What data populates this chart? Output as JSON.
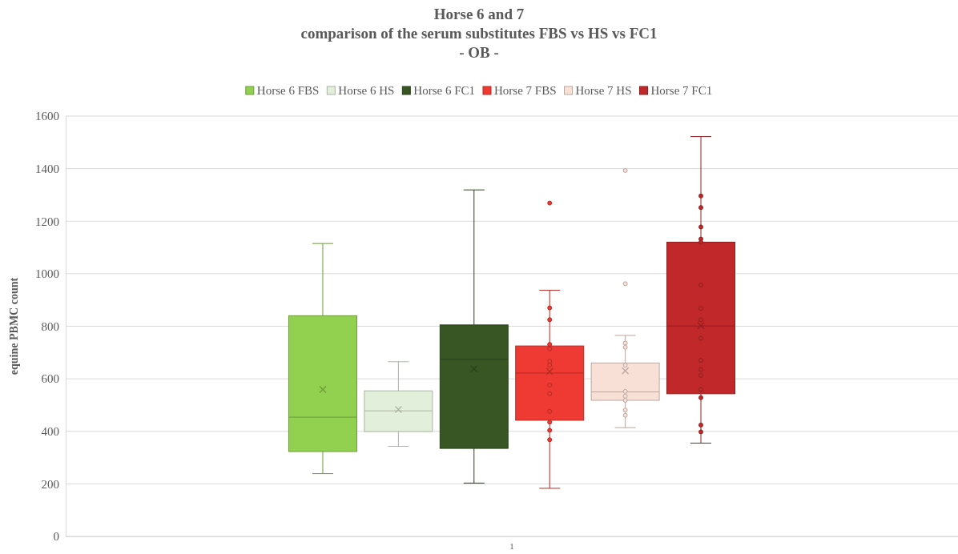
{
  "chart_data": {
    "type": "box",
    "title": "Horse 6 and 7\ncomparison of the serum substitutes FBS vs HS vs FC1\n- OB -",
    "ylabel": "equine PBMC count",
    "categories": [
      "1"
    ],
    "ylim": [
      0,
      1600
    ],
    "yticks": [
      0,
      200,
      400,
      600,
      800,
      1000,
      1200,
      1400,
      1600
    ],
    "grid": "y",
    "legend": "top",
    "series": [
      {
        "name": "Horse 6 FBS",
        "color": "#92d050",
        "boxes": [
          {
            "low": 239,
            "q1": 323,
            "median": 454,
            "q3": 840,
            "high": 1115,
            "mean": 559
          }
        ]
      },
      {
        "name": "Horse 6 HS",
        "color": "#e2efda",
        "boxes": [
          {
            "low": 343,
            "q1": 399,
            "median": 478,
            "q3": 554,
            "high": 665,
            "mean": 483
          }
        ]
      },
      {
        "name": "Horse 6 FC1",
        "color": "#375623",
        "boxes": [
          {
            "low": 203,
            "q1": 335,
            "median": 674,
            "q3": 805,
            "high": 1319,
            "mean": 638
          }
        ]
      },
      {
        "name": "Horse 7 FBS",
        "color": "#ee3a33",
        "boxes": [
          {
            "low": 183,
            "q1": 442,
            "median": 622,
            "q3": 725,
            "high": 937,
            "mean": 628,
            "outliers": [
              1269,
              870,
              825,
              731,
              714,
              667,
              652,
              576,
              543,
              476,
              435,
              404,
              368
            ]
          }
        ]
      },
      {
        "name": "Horse 7 HS",
        "color": "#f8e0d6",
        "boxes": [
          {
            "low": 414,
            "q1": 518,
            "median": 550,
            "q3": 660,
            "high": 765,
            "mean": 630,
            "outliers": [
              1393,
              962,
              736,
              720,
              652,
              552,
              534,
              518,
              481,
              461
            ]
          }
        ]
      },
      {
        "name": "Horse 7 FC1",
        "color": "#c0282a",
        "boxes": [
          {
            "low": 355,
            "q1": 543,
            "median": 801,
            "q3": 1120,
            "high": 1522,
            "mean": 802,
            "outliers": [
              1296,
              1252,
              1178,
              1132,
              1120,
              957,
              868,
              825,
              754,
              670,
              635,
              613,
              559,
              528,
              424,
              398
            ]
          }
        ]
      }
    ]
  }
}
